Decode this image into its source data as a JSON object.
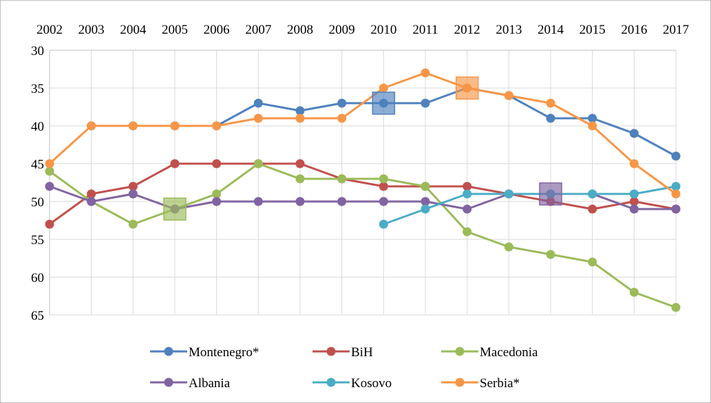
{
  "chart_data": {
    "type": "line",
    "title": "",
    "xlabel": "",
    "ylabel": "",
    "x": [
      "2002",
      "2003",
      "2004",
      "2005",
      "2006",
      "2007",
      "2008",
      "2009",
      "2010",
      "2011",
      "2012",
      "2013",
      "2014",
      "2015",
      "2016",
      "2017"
    ],
    "y_ticks": [
      30,
      35,
      40,
      45,
      50,
      55,
      60,
      65
    ],
    "ylim": [
      30,
      65
    ],
    "y_inverted": true,
    "x_axis_position": "top",
    "grid": true,
    "legend_position": "bottom",
    "series": [
      {
        "name": "Montenegro*",
        "color": "#4F81BD",
        "values": [
          null,
          40,
          40,
          40,
          40,
          37,
          38,
          37,
          37,
          37,
          35,
          36,
          39,
          39,
          41,
          44
        ],
        "highlight_year": "2010",
        "highlight_value": 37
      },
      {
        "name": "BiH",
        "color": "#C0504D",
        "values": [
          53,
          49,
          48,
          45,
          45,
          45,
          45,
          47,
          48,
          48,
          48,
          49,
          50,
          51,
          50,
          51
        ]
      },
      {
        "name": "Macedonia",
        "color": "#9BBB59",
        "values": [
          46,
          50,
          53,
          51,
          49,
          45,
          47,
          47,
          47,
          48,
          54,
          56,
          57,
          58,
          62,
          64
        ],
        "highlight_year": "2005",
        "highlight_value": 51
      },
      {
        "name": "Albania",
        "color": "#8064A2",
        "values": [
          48,
          50,
          49,
          51,
          50,
          50,
          50,
          50,
          50,
          50,
          51,
          49,
          49,
          49,
          51,
          51
        ],
        "highlight_year": "2014",
        "highlight_value": 49
      },
      {
        "name": "Kosovo",
        "color": "#4BACC6",
        "values": [
          null,
          null,
          null,
          null,
          null,
          null,
          null,
          null,
          53,
          51,
          49,
          49,
          49,
          49,
          49,
          48
        ]
      },
      {
        "name": "Serbia*",
        "color": "#F79646",
        "values": [
          45,
          40,
          40,
          40,
          40,
          39,
          39,
          39,
          35,
          33,
          35,
          36,
          37,
          40,
          45,
          49
        ],
        "highlight_year": "2012",
        "highlight_value": 35
      }
    ]
  }
}
